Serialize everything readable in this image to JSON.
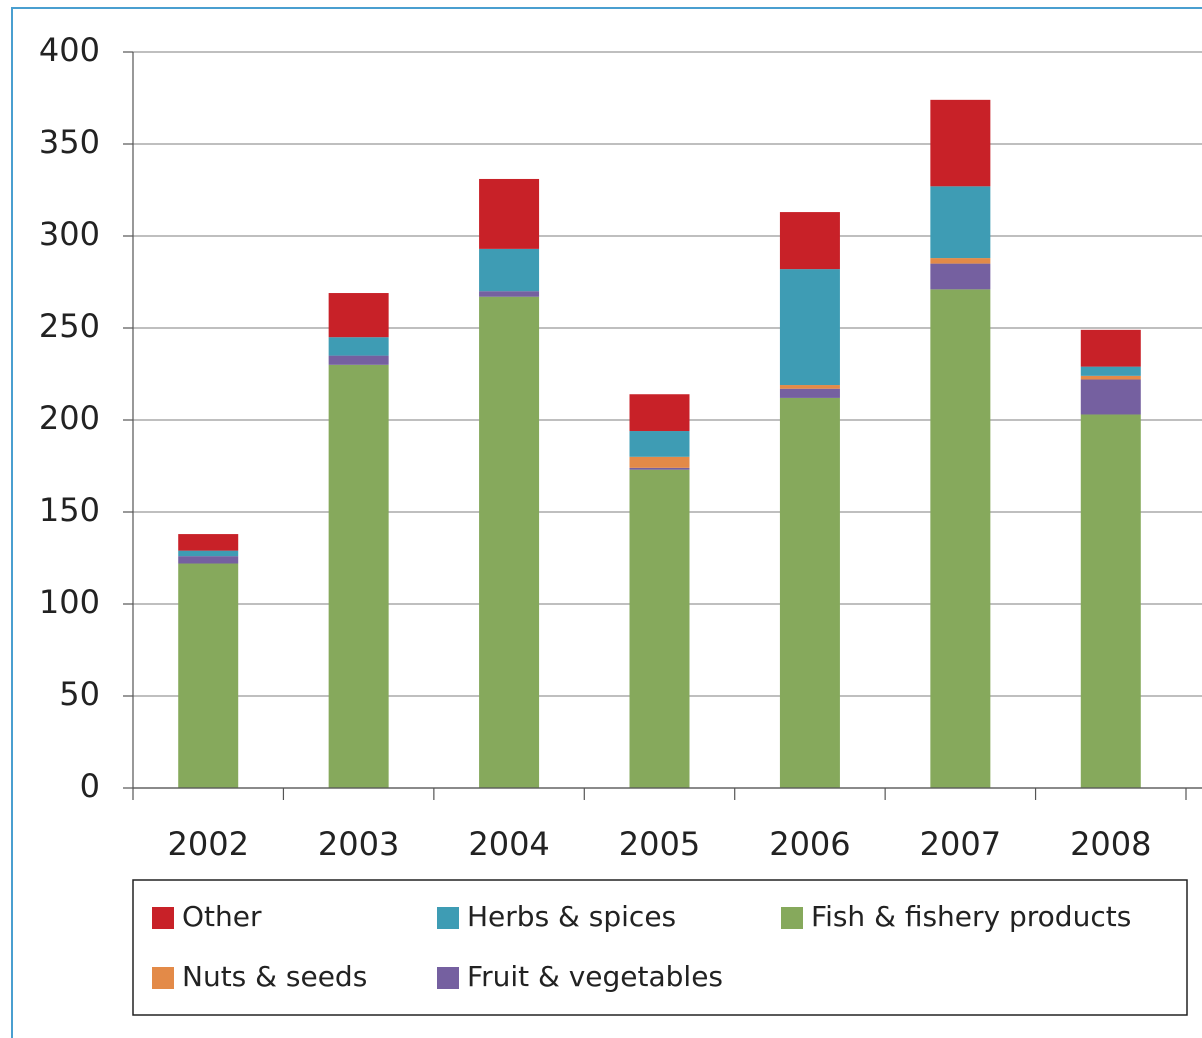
{
  "chart_data": {
    "type": "stacked_bar",
    "categories": [
      "2002",
      "2003",
      "2004",
      "2005",
      "2006",
      "2007",
      "2008"
    ],
    "series": [
      {
        "name": "Fish & fishery products",
        "color": "#86a95c",
        "values": [
          122,
          230,
          267,
          173,
          212,
          271,
          203
        ]
      },
      {
        "name": "Fruit & vegetables",
        "color": "#7560a0",
        "values": [
          4,
          5,
          3,
          1,
          5,
          14,
          19
        ]
      },
      {
        "name": "Nuts & seeds",
        "color": "#e38a48",
        "values": [
          0,
          0,
          0,
          6,
          2,
          3,
          2
        ]
      },
      {
        "name": "Herbs & spices",
        "color": "#3e9cb4",
        "values": [
          3,
          10,
          23,
          14,
          63,
          39,
          5
        ]
      },
      {
        "name": "Other",
        "color": "#c82128",
        "values": [
          9,
          24,
          38,
          20,
          31,
          47,
          20
        ]
      }
    ],
    "ylim": [
      0,
      400
    ],
    "yticks": [
      0,
      50,
      100,
      150,
      200,
      250,
      300,
      350,
      400
    ],
    "grid": true,
    "legend": "bottom"
  }
}
